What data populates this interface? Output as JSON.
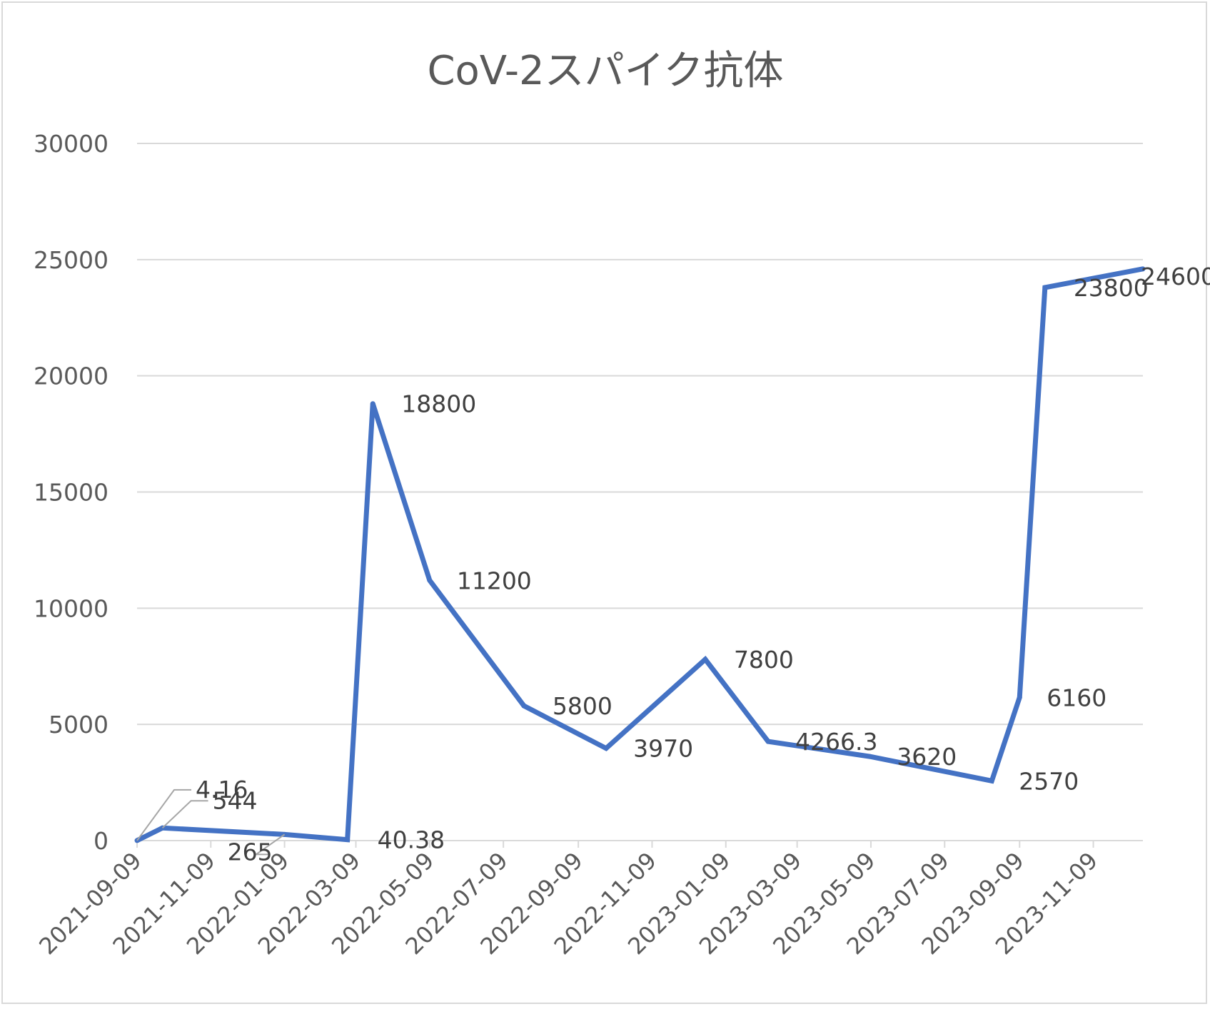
{
  "chart_data": {
    "type": "line",
    "title": "CoV-2スパイク抗体",
    "xlabel": "",
    "ylabel": "",
    "ylim": [
      0,
      30000
    ],
    "yticks": [
      "0",
      "5000",
      "10000",
      "15000",
      "20000",
      "25000",
      "30000"
    ],
    "x_axis_type": "date",
    "x_tick_labels": [
      "2021-09-09",
      "2021-11-09",
      "2022-01-09",
      "2022-03-09",
      "2022-05-09",
      "2022-07-09",
      "2022-09-09",
      "2022-11-09",
      "2023-01-09",
      "2023-03-09",
      "2023-05-09",
      "2023-07-09",
      "2023-09-09",
      "2023-11-09"
    ],
    "xlim": [
      "2021-09-09",
      "2023-12-20"
    ],
    "grid": "horizontal",
    "legend": "none",
    "series": [
      {
        "color": "#4472c4",
        "points": [
          {
            "date": "2021-09-09",
            "value": 4.16,
            "label": "4.16"
          },
          {
            "date": "2021-09-30",
            "value": 544,
            "label": "544"
          },
          {
            "date": "2022-01-09",
            "value": 265,
            "label": "265"
          },
          {
            "date": "2022-03-02",
            "value": 40.38,
            "label": "40.38"
          },
          {
            "date": "2022-03-23",
            "value": 18800,
            "label": "18800"
          },
          {
            "date": "2022-05-09",
            "value": 11200,
            "label": "11200"
          },
          {
            "date": "2022-07-26",
            "value": 5800,
            "label": "5800"
          },
          {
            "date": "2022-10-02",
            "value": 3970,
            "label": "3970"
          },
          {
            "date": "2022-12-23",
            "value": 7800,
            "label": "7800"
          },
          {
            "date": "2023-02-13",
            "value": 4266.3,
            "label": "4266.3"
          },
          {
            "date": "2023-05-08",
            "value": 3620,
            "label": "3620"
          },
          {
            "date": "2023-08-17",
            "value": 2570,
            "label": "2570"
          },
          {
            "date": "2023-09-09",
            "value": 6160,
            "label": "6160"
          },
          {
            "date": "2023-09-30",
            "value": 23800,
            "label": "23800"
          },
          {
            "date": "2023-12-20",
            "value": 24600,
            "label": "24600"
          }
        ]
      }
    ]
  }
}
